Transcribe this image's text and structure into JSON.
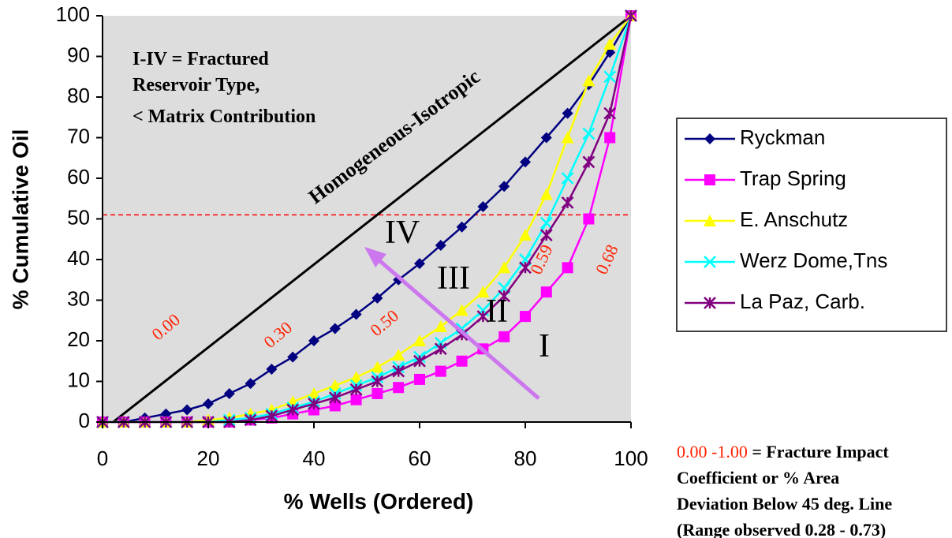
{
  "chart_data": {
    "type": "line",
    "ylabel": "% Cumulative Oil",
    "xlabel": "%  Wells (Ordered)",
    "xlim": [
      0,
      100
    ],
    "ylim": [
      0,
      100
    ],
    "xticks": [
      0,
      20,
      40,
      60,
      80,
      100
    ],
    "yticks": [
      0,
      10,
      20,
      30,
      40,
      50,
      60,
      70,
      80,
      90,
      100
    ],
    "background": "#dddddd",
    "x": [
      0,
      4,
      8,
      12,
      16,
      20,
      24,
      28,
      32,
      36,
      40,
      44,
      48,
      52,
      56,
      60,
      64,
      68,
      72,
      76,
      80,
      84,
      88,
      92,
      96,
      100
    ],
    "series": [
      {
        "name": "Ryckman",
        "color": "#000080",
        "marker": "diamond",
        "values": [
          0,
          0,
          1,
          2,
          3,
          4.5,
          7,
          9.5,
          13,
          16,
          20,
          23,
          26.5,
          30.5,
          35,
          39,
          43.5,
          48,
          53,
          58,
          64,
          70,
          76,
          83,
          91,
          100
        ]
      },
      {
        "name": "Trap Spring",
        "color": "#ff00ff",
        "marker": "square",
        "values": [
          0,
          0,
          0,
          0,
          0,
          0,
          0,
          0.5,
          1,
          2,
          3,
          4,
          5.5,
          7,
          8.5,
          10.5,
          12.5,
          15,
          18,
          21,
          26,
          32,
          38,
          50,
          70,
          100
        ]
      },
      {
        "name": "E. Anschutz",
        "color": "#ffff00",
        "marker": "triangle",
        "values": [
          0,
          0,
          0,
          0,
          0,
          0.5,
          1,
          2,
          3,
          5,
          7,
          9,
          11,
          13.5,
          16.5,
          20,
          23.5,
          27.5,
          32,
          38,
          46,
          56,
          70,
          84,
          93,
          100
        ]
      },
      {
        "name": "Werz Dome,Tns",
        "color": "#00ffff",
        "marker": "x",
        "values": [
          0,
          0,
          0,
          0,
          0,
          0,
          0.5,
          1,
          2,
          3.5,
          5,
          7,
          9,
          11,
          13.5,
          16,
          19.5,
          23,
          27.5,
          33,
          40,
          49,
          60,
          71,
          85,
          100
        ]
      },
      {
        "name": "La Paz, Carb.",
        "color": "#800080",
        "marker": "star",
        "values": [
          0,
          0,
          0,
          0,
          0,
          0,
          0,
          0.5,
          1.5,
          3,
          4.5,
          6,
          8,
          10,
          12.5,
          15,
          18,
          21.5,
          26,
          31,
          38,
          46,
          54,
          64,
          76,
          100
        ]
      }
    ],
    "reference": {
      "label": "Homogeneous-Isotropic",
      "x": [
        2,
        100
      ],
      "y": [
        0,
        100
      ],
      "color": "#000000"
    },
    "hline": {
      "value": 51,
      "color": "#ff0000"
    },
    "note": [
      "I-IV = Fractured",
      "Reservoir Type,",
      "< Matrix Contribution"
    ],
    "types": [
      "IV",
      "III",
      "II",
      "I"
    ],
    "coefficients": [
      "0.00",
      "0.30",
      "0.50",
      "0.59",
      "0.68"
    ],
    "footnote": {
      "range": "0.00 -1.00",
      "lines": [
        " = Fracture Impact",
        "Coefficient or % Area",
        "Deviation Below 45 deg. Line",
        "(Range observed 0.28 - 0.73)"
      ]
    }
  }
}
